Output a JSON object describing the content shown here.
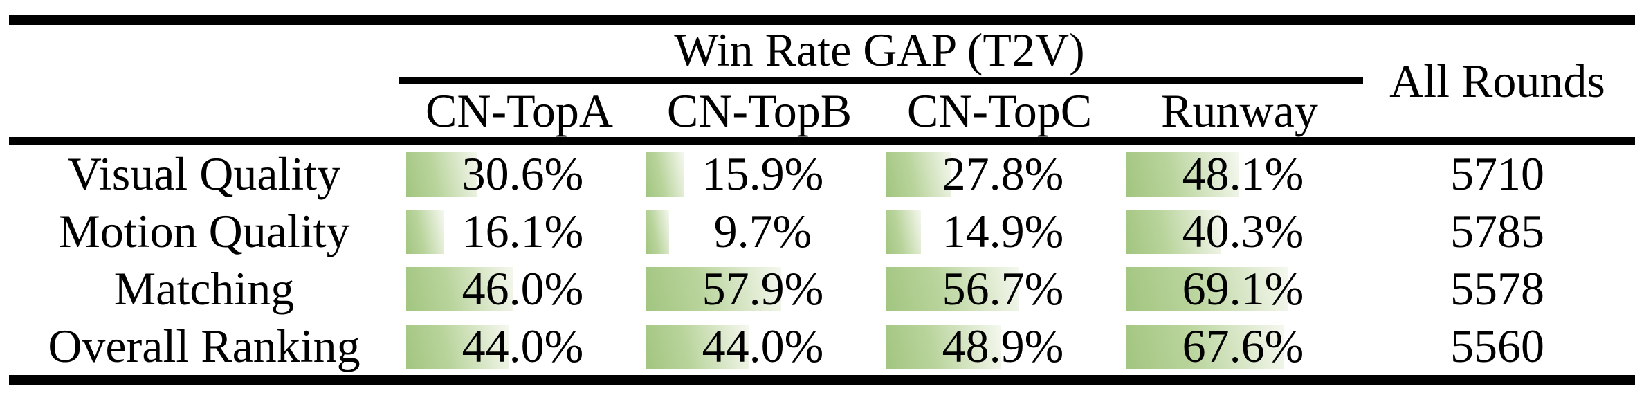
{
  "figure": {
    "group_header": "Win Rate GAP (T2V)",
    "columns": [
      "CN-TopA",
      "CN-TopB",
      "CN-TopC",
      "Runway"
    ],
    "all_rounds_header": "All Rounds",
    "rows": [
      {
        "label": "Visual Quality",
        "cells": [
          {
            "pct": "30.6%",
            "value": 30.6
          },
          {
            "pct": "15.9%",
            "value": 15.9
          },
          {
            "pct": "27.8%",
            "value": 27.8
          },
          {
            "pct": "48.1%",
            "value": 48.1
          }
        ],
        "all_rounds": "5710"
      },
      {
        "label": "Motion Quality",
        "cells": [
          {
            "pct": "16.1%",
            "value": 16.1
          },
          {
            "pct": "9.7%",
            "value": 9.7
          },
          {
            "pct": "14.9%",
            "value": 14.9
          },
          {
            "pct": "40.3%",
            "value": 40.3
          }
        ],
        "all_rounds": "5785"
      },
      {
        "label": "Matching",
        "cells": [
          {
            "pct": "46.0%",
            "value": 46.0
          },
          {
            "pct": "57.9%",
            "value": 57.9
          },
          {
            "pct": "56.7%",
            "value": 56.7
          },
          {
            "pct": "69.1%",
            "value": 69.1
          }
        ],
        "all_rounds": "5578"
      },
      {
        "label": "Overall Ranking",
        "cells": [
          {
            "pct": "44.0%",
            "value": 44.0
          },
          {
            "pct": "44.0%",
            "value": 44.0
          },
          {
            "pct": "48.9%",
            "value": 48.9
          },
          {
            "pct": "67.6%",
            "value": 67.6
          }
        ],
        "all_rounds": "5560"
      }
    ],
    "colors": {
      "bar_gradient_start": "#a2c580",
      "bar_gradient_end": "#f4f8ef",
      "rule": "#000000",
      "text": "#000000",
      "background": "#ffffff"
    }
  },
  "chart_data": {
    "type": "table",
    "title": "Win Rate GAP (T2V)",
    "categories": [
      "Visual Quality",
      "Motion Quality",
      "Matching",
      "Overall Ranking"
    ],
    "series": [
      {
        "name": "CN-TopA",
        "values": [
          30.6,
          16.1,
          46.0,
          44.0
        ]
      },
      {
        "name": "CN-TopB",
        "values": [
          15.9,
          9.7,
          57.9,
          44.0
        ]
      },
      {
        "name": "CN-TopC",
        "values": [
          27.8,
          14.9,
          56.7,
          48.9
        ]
      },
      {
        "name": "Runway",
        "values": [
          48.1,
          40.3,
          69.1,
          67.6
        ]
      }
    ],
    "all_rounds_column": {
      "name": "All Rounds",
      "values": [
        5710,
        5785,
        5578,
        5560
      ]
    },
    "unit": "%",
    "value_range": [
      0,
      100
    ],
    "bars": "horizontal gradient fill behind each percentage, width proportional to value"
  }
}
